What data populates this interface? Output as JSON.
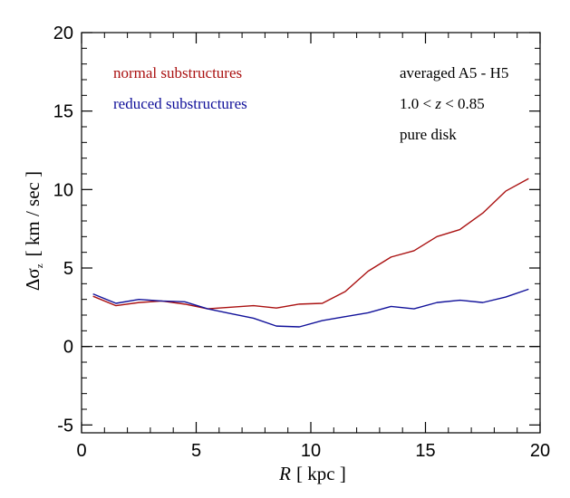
{
  "chart_data": {
    "type": "line",
    "xlabel_parts": {
      "var": "R",
      "unit": "[ kpc ]"
    },
    "ylabel_parts": {
      "delta": "Δσ",
      "sub": "z",
      "unit": "[ km / sec ]"
    },
    "xlim": [
      0,
      20
    ],
    "ylim": [
      -5.5,
      20
    ],
    "x_ticks": [
      0,
      5,
      10,
      15,
      20
    ],
    "x_tick_labels": [
      "0",
      "5",
      "10",
      "15",
      "20"
    ],
    "y_ticks": [
      -5,
      0,
      5,
      10,
      15,
      20
    ],
    "y_tick_labels": [
      "-5",
      "0",
      "5",
      "10",
      "15",
      "20"
    ],
    "reference_line": {
      "y": 0,
      "style": "dashed"
    },
    "grid": false,
    "legend_placement": "top-left",
    "x": [
      0.5,
      1.5,
      2.5,
      3.5,
      4.5,
      5.5,
      6.5,
      7.5,
      8.5,
      9.5,
      10.5,
      11.5,
      12.5,
      13.5,
      14.5,
      15.5,
      16.5,
      17.5,
      18.5,
      19.5
    ],
    "series": [
      {
        "name": "normal substructures",
        "color": "#aa1111",
        "values": [
          3.2,
          2.6,
          2.8,
          2.9,
          2.7,
          2.4,
          2.5,
          2.6,
          2.45,
          2.7,
          2.75,
          3.5,
          4.8,
          5.7,
          6.1,
          7.0,
          7.45,
          8.5,
          9.9,
          10.7
        ]
      },
      {
        "name": "reduced substructures",
        "color": "#11119a",
        "values": [
          3.35,
          2.75,
          3.0,
          2.9,
          2.85,
          2.4,
          2.1,
          1.8,
          1.3,
          1.25,
          1.65,
          1.9,
          2.15,
          2.55,
          2.4,
          2.8,
          2.95,
          2.8,
          3.15,
          3.65
        ]
      }
    ],
    "annotations": {
      "line1": "averaged A5 - H5",
      "line2_prefix": "1.0 < ",
      "line2_var": "z",
      "line2_suffix": " < 0.85",
      "line3": "pure disk"
    }
  }
}
